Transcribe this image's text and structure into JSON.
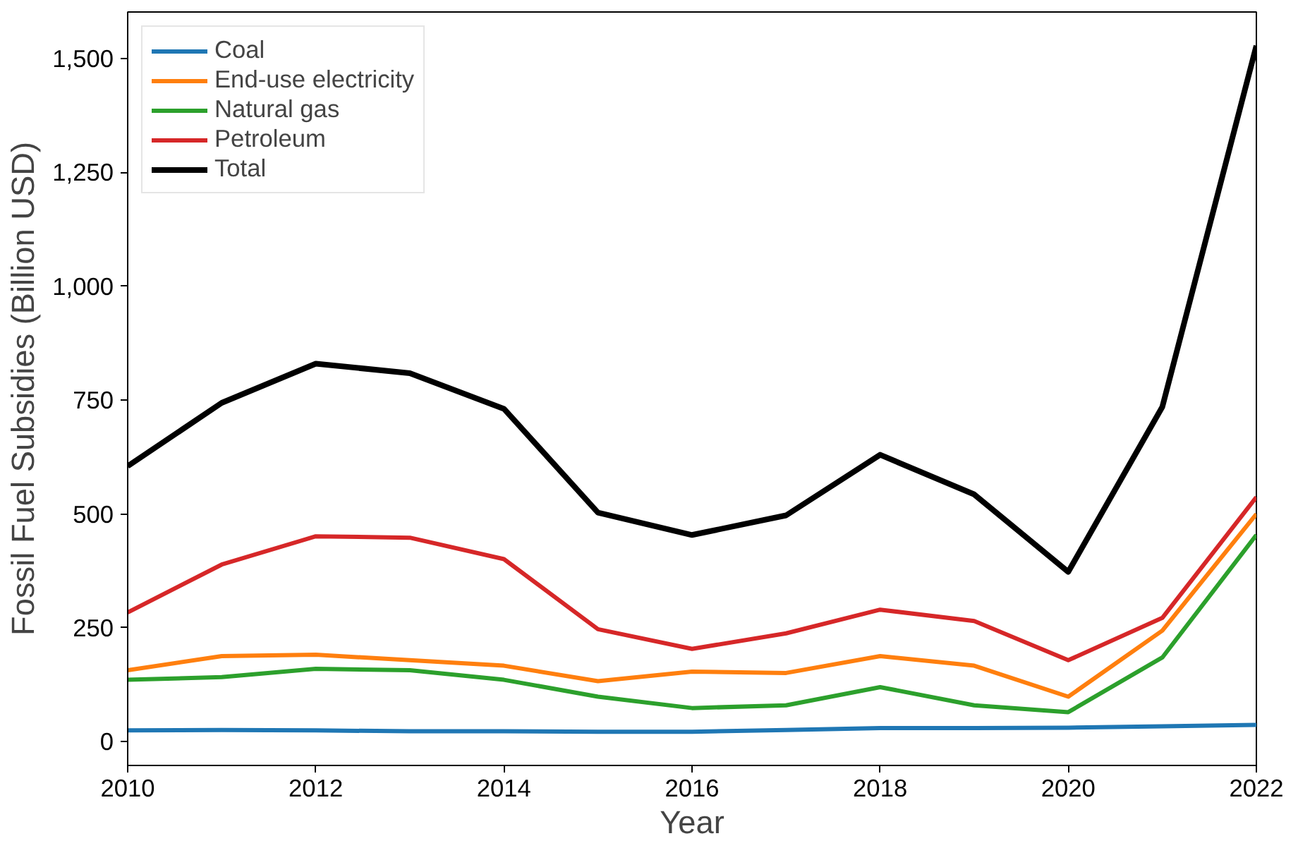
{
  "chart_data": {
    "type": "line",
    "xlabel": "Year",
    "ylabel": "Fossil Fuel Subsidies (Billion USD)",
    "x": [
      2010,
      2011,
      2012,
      2013,
      2014,
      2015,
      2016,
      2017,
      2018,
      2019,
      2020,
      2021,
      2022
    ],
    "series": [
      {
        "name": "Coal",
        "color": "#1f77b4",
        "values": [
          25,
          26,
          25,
          23,
          23,
          22,
          22,
          26,
          30,
          30,
          31,
          34,
          37
        ]
      },
      {
        "name": "End-use electricity",
        "color": "#ff7f0e",
        "values": [
          157,
          188,
          191,
          179,
          167,
          133,
          154,
          151,
          188,
          167,
          99,
          244,
          500
        ]
      },
      {
        "name": "Natural gas",
        "color": "#2ca02c",
        "values": [
          136,
          142,
          160,
          157,
          136,
          99,
          74,
          80,
          120,
          80,
          65,
          185,
          454
        ]
      },
      {
        "name": "Petroleum",
        "color": "#d62728",
        "values": [
          284,
          389,
          451,
          448,
          401,
          247,
          204,
          238,
          290,
          265,
          179,
          272,
          537
        ]
      },
      {
        "name": "Total",
        "color": "#000000",
        "values": [
          605,
          744,
          830,
          809,
          731,
          503,
          454,
          497,
          630,
          543,
          373,
          735,
          1528
        ]
      }
    ],
    "xlim": [
      2010,
      2022
    ],
    "ylim": [
      -52,
      1602
    ],
    "xticks": [
      2010,
      2012,
      2014,
      2016,
      2018,
      2020,
      2022
    ],
    "yticks": [
      {
        "value": 0,
        "label": "0"
      },
      {
        "value": 250,
        "label": "250"
      },
      {
        "value": 500,
        "label": "500"
      },
      {
        "value": 750,
        "label": "750"
      },
      {
        "value": 1000,
        "label": "1,000"
      },
      {
        "value": 1250,
        "label": "1,250"
      },
      {
        "value": 1500,
        "label": "1,500"
      }
    ],
    "grid": false,
    "legend": "top left",
    "line_style": "solid",
    "marker": "none"
  }
}
